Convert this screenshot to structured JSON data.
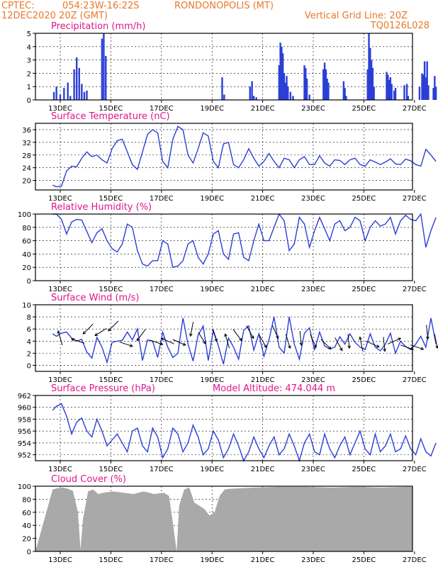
{
  "header": {
    "line1_left": "CPTEC:",
    "location_coords": "054:23W-16:22S",
    "location_name": "RONDONOPOLIS (MT)",
    "line2_left": "12DEC2020 20Z (GMT)",
    "grid_note": "Vertical Grid Line: 20Z",
    "code": "TQ0126L028"
  },
  "colors": {
    "header": "#e8782a",
    "panel_title": "#e0158c",
    "series": "#2b3fd6",
    "cloud": "#a9a9a9",
    "wind_arrow": "#000000"
  },
  "x_axis": {
    "start": "12DEC2020 20Z",
    "end": "27DEC2020 00Z",
    "tick_labels": [
      "13DEC",
      "15DEC",
      "17DEC",
      "19DEC",
      "21DEC",
      "23DEC",
      "25DEC",
      "27DEC"
    ],
    "gridline": "20Z daily"
  },
  "chart_data": [
    {
      "id": "precip",
      "type": "bar",
      "title": "Precipitation (mm/h)",
      "ylim": [
        0,
        5
      ],
      "yticks": [
        0,
        1,
        2,
        3,
        4,
        5
      ],
      "x_days": [
        0.05,
        0.15,
        0.3,
        0.45,
        0.6,
        0.7,
        0.85,
        0.95,
        1.05,
        1.15,
        1.25,
        1.35,
        1.95,
        2.02,
        2.1,
        6.7,
        6.78,
        7.8,
        7.88,
        7.95,
        8.05,
        8.95,
        9.0,
        9.05,
        9.1,
        9.15,
        9.2,
        9.25,
        9.3,
        9.4,
        9.5,
        9.95,
        10.0,
        10.05,
        10.15,
        10.7,
        10.75,
        10.8,
        10.85,
        10.9,
        11.5,
        11.55,
        11.6,
        12.45,
        12.5,
        12.55,
        12.6,
        12.65,
        12.7,
        13.2,
        13.25,
        13.3,
        13.35,
        13.4,
        13.5,
        13.55,
        13.9,
        14.0,
        14.05,
        14.5,
        14.6,
        14.65,
        14.7,
        14.75,
        14.8,
        14.85,
        15.05,
        15.1,
        15.15,
        15.5,
        15.55,
        15.6,
        15.65,
        15.7,
        15.75,
        15.8
      ],
      "values": [
        0.6,
        1.0,
        0.4,
        0.9,
        1.3,
        0.3,
        2.3,
        3.2,
        2.4,
        1.2,
        0.6,
        0.7,
        4.6,
        5.0,
        3.3,
        1.7,
        0.4,
        1.0,
        1.4,
        0.3,
        0.2,
        2.6,
        4.3,
        4.0,
        3.5,
        2.0,
        1.3,
        1.8,
        1.0,
        0.6,
        0.3,
        2.6,
        2.4,
        1.6,
        0.4,
        2.3,
        2.8,
        2.3,
        1.6,
        1.3,
        1.4,
        0.9,
        0.3,
        2.3,
        5.0,
        3.9,
        3.0,
        2.4,
        1.0,
        2.1,
        1.9,
        1.5,
        1.7,
        1.2,
        0.7,
        0.9,
        1.1,
        1.2,
        0.3,
        1.0,
        2.0,
        1.9,
        2.9,
        1.7,
        2.9,
        1.1,
        0.9,
        1.8,
        1.0,
        2.6,
        3.2,
        3.7,
        2.9,
        1.5,
        1.0,
        0.8
      ]
    },
    {
      "id": "temp",
      "type": "line",
      "title": "Surface Temperature (nC)",
      "ylim": [
        17,
        38
      ],
      "yticks": [
        20,
        24,
        28,
        32,
        36
      ],
      "x_days": [
        0,
        0.15,
        0.35,
        0.55,
        0.75,
        0.95,
        1.15,
        1.35,
        1.55,
        1.75,
        1.95,
        2.15,
        2.35,
        2.55,
        2.75,
        2.95,
        3.15,
        3.35,
        3.55,
        3.75,
        3.95,
        4.15,
        4.35,
        4.55,
        4.75,
        4.95,
        5.15,
        5.35,
        5.55,
        5.75,
        5.95,
        6.15,
        6.35,
        6.55,
        6.75,
        6.95,
        7.15,
        7.35,
        7.55,
        7.75,
        7.95,
        8.15,
        8.35,
        8.55,
        8.75,
        8.95,
        9.15,
        9.35,
        9.55,
        9.75,
        9.95,
        10.15,
        10.35,
        10.55,
        10.75,
        10.95,
        11.15,
        11.35,
        11.55,
        11.75,
        11.95,
        12.15,
        12.35,
        12.55,
        12.75,
        12.95,
        13.15,
        13.35,
        13.55,
        13.75,
        13.95,
        14.15,
        14.35,
        14.55,
        14.75,
        14.95,
        15.15
      ],
      "series": [
        {
          "values": [
            18.5,
            18,
            18.2,
            23,
            24.5,
            24.3,
            27,
            29,
            27.5,
            28,
            26.5,
            25.5,
            30,
            32.5,
            33,
            29,
            25,
            23.5,
            29,
            34.5,
            36,
            35,
            26,
            24,
            33,
            37,
            36,
            28,
            25.5,
            30,
            35,
            34,
            26,
            24,
            31.5,
            32,
            25,
            24,
            26.5,
            30,
            27,
            24.5,
            26,
            28.5,
            26,
            24,
            27,
            26.5,
            24,
            26.5,
            27.5,
            25,
            25,
            27.8,
            25.5,
            24.5,
            26.5,
            26.3,
            25,
            26.5,
            27,
            25,
            24.5,
            26.5,
            25.8,
            25,
            25.8,
            26.8,
            25.2,
            25,
            26.7,
            26.2,
            25,
            24.5,
            29.8,
            28,
            26
          ]
        }
      ]
    },
    {
      "id": "humidity",
      "type": "line",
      "title": "Relative Humidity (%)",
      "ylim": [
        0,
        100
      ],
      "yticks": [
        0,
        20,
        40,
        60,
        80,
        100
      ],
      "x_days": [
        0,
        0.15,
        0.35,
        0.55,
        0.75,
        0.95,
        1.15,
        1.35,
        1.55,
        1.75,
        1.95,
        2.15,
        2.35,
        2.55,
        2.75,
        2.95,
        3.15,
        3.35,
        3.55,
        3.75,
        3.95,
        4.15,
        4.35,
        4.55,
        4.75,
        4.95,
        5.15,
        5.35,
        5.55,
        5.75,
        5.95,
        6.15,
        6.35,
        6.55,
        6.75,
        6.95,
        7.15,
        7.35,
        7.55,
        7.75,
        7.95,
        8.15,
        8.35,
        8.55,
        8.75,
        8.95,
        9.15,
        9.35,
        9.55,
        9.75,
        9.95,
        10.15,
        10.35,
        10.55,
        10.75,
        10.95,
        11.15,
        11.35,
        11.55,
        11.75,
        11.95,
        12.15,
        12.35,
        12.55,
        12.75,
        12.95,
        13.15,
        13.35,
        13.55,
        13.75,
        13.95,
        14.15,
        14.35,
        14.55,
        14.75,
        14.95,
        15.15
      ],
      "series": [
        {
          "values": [
            100,
            100,
            92,
            70,
            88,
            92,
            91,
            74,
            57,
            72,
            78,
            60,
            48,
            43,
            55,
            85,
            80,
            45,
            25,
            22,
            30,
            30,
            60,
            55,
            20,
            22,
            30,
            55,
            60,
            35,
            25,
            40,
            70,
            75,
            40,
            32,
            70,
            72,
            35,
            30,
            60,
            85,
            60,
            60,
            80,
            100,
            90,
            45,
            55,
            95,
            85,
            50,
            75,
            95,
            78,
            60,
            85,
            90,
            75,
            80,
            95,
            90,
            60,
            80,
            90,
            82,
            85,
            95,
            70,
            90,
            98,
            92,
            90,
            100,
            50,
            75,
            95
          ]
        }
      ]
    },
    {
      "id": "wind",
      "type": "line",
      "title": "Surface Wind (m/s)",
      "ylim": [
        -1,
        10
      ],
      "yticks": [
        0,
        2,
        4,
        6,
        8,
        10
      ],
      "x_days": [
        0,
        0.15,
        0.35,
        0.55,
        0.75,
        0.95,
        1.15,
        1.35,
        1.55,
        1.75,
        1.95,
        2.15,
        2.35,
        2.55,
        2.75,
        2.95,
        3.15,
        3.35,
        3.55,
        3.75,
        3.95,
        4.15,
        4.35,
        4.55,
        4.75,
        4.95,
        5.15,
        5.35,
        5.55,
        5.75,
        5.95,
        6.15,
        6.35,
        6.55,
        6.75,
        6.95,
        7.15,
        7.35,
        7.55,
        7.75,
        7.95,
        8.15,
        8.35,
        8.55,
        8.75,
        8.95,
        9.15,
        9.35,
        9.55,
        9.75,
        9.95,
        10.15,
        10.35,
        10.55,
        10.75,
        10.95,
        11.15,
        11.35,
        11.55,
        11.75,
        11.95,
        12.15,
        12.35,
        12.55,
        12.75,
        12.95,
        13.15,
        13.35,
        13.55,
        13.75,
        13.95,
        14.15,
        14.35,
        14.55,
        14.75,
        14.95,
        15.15
      ],
      "series": [
        {
          "values": [
            5.2,
            4.8,
            5.3,
            5.5,
            4.5,
            4.0,
            4.3,
            2.2,
            1.2,
            4.6,
            3.0,
            0.5,
            3.8,
            4.0,
            4.1,
            5.5,
            4.2,
            6.0,
            0.8,
            4.2,
            4.0,
            1.3,
            5.5,
            3.0,
            1.3,
            2.0,
            7.8,
            3.5,
            0.7,
            5.0,
            6.5,
            0.8,
            5.8,
            3.2,
            0.2,
            4.5,
            3.0,
            1.0,
            5.8,
            6.5,
            2.5,
            5.2,
            1.5,
            4.2,
            8.0,
            3.0,
            2.0,
            8.0,
            3.5,
            1.0,
            5.3,
            6.2,
            2.5,
            5.5,
            3.2,
            2.7,
            3.0,
            4.7,
            3.5,
            5.2,
            3.8,
            3.0,
            2.6,
            5.2,
            3.0,
            2.4,
            3.5,
            5.3,
            2.0,
            4.0,
            3.1,
            2.6,
            3.5,
            4.8,
            3.0,
            7.8,
            3.5
          ]
        }
      ],
      "arrows": [
        {
          "day": 0.3,
          "speed": 4.5,
          "dx": -0.3,
          "dy": -1
        },
        {
          "day": 1.0,
          "speed": 4.0,
          "dx": -0.9,
          "dy": -0.3
        },
        {
          "day": 1.4,
          "speed": 6.0,
          "dx": -0.7,
          "dy": 0.7
        },
        {
          "day": 1.9,
          "speed": 5.5,
          "dx": -0.8,
          "dy": 0.5
        },
        {
          "day": 2.4,
          "speed": 6.5,
          "dx": -0.7,
          "dy": 0.7
        },
        {
          "day": 2.9,
          "speed": 3.5,
          "dx": 0.9,
          "dy": 0.3
        },
        {
          "day": 3.5,
          "speed": 5.0,
          "dx": -0.6,
          "dy": 0.8
        },
        {
          "day": 4.1,
          "speed": 3.8,
          "dx": 0.9,
          "dy": 0.3
        },
        {
          "day": 4.55,
          "speed": 4.0,
          "dx": -0.9,
          "dy": -0.4
        },
        {
          "day": 5.0,
          "speed": 3.8,
          "dx": 0.9,
          "dy": 0.4
        },
        {
          "day": 5.5,
          "speed": 6.0,
          "dx": -0.2,
          "dy": 1
        },
        {
          "day": 5.9,
          "speed": 4.5,
          "dx": 0.5,
          "dy": 0.8
        },
        {
          "day": 6.4,
          "speed": 5.0,
          "dx": 0.3,
          "dy": 0.9
        },
        {
          "day": 6.9,
          "speed": 4.0,
          "dx": -0.3,
          "dy": -1
        },
        {
          "day": 7.3,
          "speed": 5.0,
          "dx": 0.6,
          "dy": 0.8
        },
        {
          "day": 7.8,
          "speed": 5.5,
          "dx": 0.5,
          "dy": 0.9
        },
        {
          "day": 8.3,
          "speed": 4.0,
          "dx": 0.5,
          "dy": 0.9
        },
        {
          "day": 8.8,
          "speed": 5.5,
          "dx": 0.4,
          "dy": 0.9
        },
        {
          "day": 9.3,
          "speed": 4.0,
          "dx": 0.3,
          "dy": 1
        },
        {
          "day": 9.8,
          "speed": 4.5,
          "dx": 0.1,
          "dy": 1
        },
        {
          "day": 10.3,
          "speed": 4.0,
          "dx": 0.4,
          "dy": 0.9
        },
        {
          "day": 10.8,
          "speed": 3.5,
          "dx": 0.7,
          "dy": 0.7
        },
        {
          "day": 11.3,
          "speed": 3.5,
          "dx": 0.5,
          "dy": 0.9
        },
        {
          "day": 11.7,
          "speed": 4.0,
          "dx": 0.1,
          "dy": 1
        },
        {
          "day": 12.2,
          "speed": 3.5,
          "dx": -0.2,
          "dy": -1
        },
        {
          "day": 12.65,
          "speed": 3.5,
          "dx": 0.9,
          "dy": 0.4
        },
        {
          "day": 13.1,
          "speed": 3.5,
          "dx": 0.1,
          "dy": 1
        },
        {
          "day": 13.5,
          "speed": 4.0,
          "dx": 0.9,
          "dy": -0.4
        },
        {
          "day": 14.0,
          "speed": 3.0,
          "dx": 0.9,
          "dy": 0.3
        },
        {
          "day": 14.4,
          "speed": 3.0,
          "dx": 0.9,
          "dy": 0.3
        },
        {
          "day": 14.8,
          "speed": 5.5,
          "dx": 0.1,
          "dy": 1
        },
        {
          "day": 15.15,
          "speed": 4.0,
          "dx": 0.2,
          "dy": 1
        }
      ]
    },
    {
      "id": "pressure",
      "type": "line",
      "title": "Surface Pressure (hPa)",
      "subtitle": "Model Altitude: 474.044 m",
      "ylim": [
        951,
        962
      ],
      "yticks": [
        952,
        954,
        956,
        958,
        960,
        962
      ],
      "x_days": [
        0,
        0.15,
        0.35,
        0.55,
        0.75,
        0.95,
        1.15,
        1.35,
        1.55,
        1.75,
        1.95,
        2.15,
        2.35,
        2.55,
        2.75,
        2.95,
        3.15,
        3.35,
        3.55,
        3.75,
        3.95,
        4.15,
        4.35,
        4.55,
        4.75,
        4.95,
        5.15,
        5.35,
        5.55,
        5.75,
        5.95,
        6.15,
        6.35,
        6.55,
        6.75,
        6.95,
        7.15,
        7.35,
        7.55,
        7.75,
        7.95,
        8.15,
        8.35,
        8.55,
        8.75,
        8.95,
        9.15,
        9.35,
        9.55,
        9.75,
        9.95,
        10.15,
        10.35,
        10.55,
        10.75,
        10.95,
        11.15,
        11.35,
        11.55,
        11.75,
        11.95,
        12.15,
        12.35,
        12.55,
        12.75,
        12.95,
        13.15,
        13.35,
        13.55,
        13.75,
        13.95,
        14.15,
        14.35,
        14.55,
        14.75,
        14.95,
        15.15
      ],
      "series": [
        {
          "values": [
            959.5,
            960.2,
            960.6,
            958.5,
            955.5,
            957.5,
            958.2,
            956,
            955,
            958,
            956,
            953.5,
            954.5,
            955.5,
            954,
            952.5,
            956,
            956.5,
            953.5,
            952.5,
            956.5,
            955,
            951.5,
            953,
            956.5,
            955.5,
            952.5,
            954,
            957,
            955,
            952,
            953,
            956,
            954.5,
            951.5,
            953,
            955.5,
            953.5,
            951,
            952.5,
            955,
            953,
            951.5,
            953.5,
            955,
            952,
            953,
            955.5,
            953.5,
            951,
            954,
            955.5,
            952.5,
            952,
            955.5,
            953,
            951.5,
            953.5,
            955,
            952,
            954,
            956,
            953,
            952,
            955.5,
            952.5,
            953.5,
            955.5,
            952.5,
            953,
            955.2,
            953,
            952,
            954.7,
            952.5,
            951.8,
            954
          ]
        }
      ]
    },
    {
      "id": "cloud",
      "type": "area",
      "title": "Cloud Cover (%)",
      "ylim": [
        0,
        100
      ],
      "yticks": [
        0,
        20,
        40,
        60,
        80,
        100
      ],
      "x_days": [
        0,
        0.2,
        0.4,
        0.6,
        0.8,
        1.0,
        1.1,
        1.2,
        1.4,
        1.6,
        1.8,
        2.0,
        2.4,
        2.8,
        3.2,
        3.6,
        4.0,
        4.4,
        4.6,
        4.8,
        4.9,
        5.0,
        5.2,
        5.4,
        5.6,
        5.8,
        6.0,
        6.2,
        6.4,
        6.6,
        6.8,
        7.0,
        7.5,
        8.0,
        9.0,
        10.0,
        11.0,
        12.0,
        13.0,
        14.0,
        15.0,
        15.2
      ],
      "values": [
        95,
        97,
        98,
        96,
        93,
        60,
        3,
        50,
        92,
        95,
        88,
        90,
        92,
        90,
        88,
        92,
        88,
        90,
        85,
        30,
        0,
        70,
        95,
        98,
        75,
        70,
        65,
        55,
        60,
        85,
        95,
        96,
        97,
        98,
        99,
        99,
        98,
        99,
        98,
        99,
        99,
        100
      ]
    }
  ]
}
